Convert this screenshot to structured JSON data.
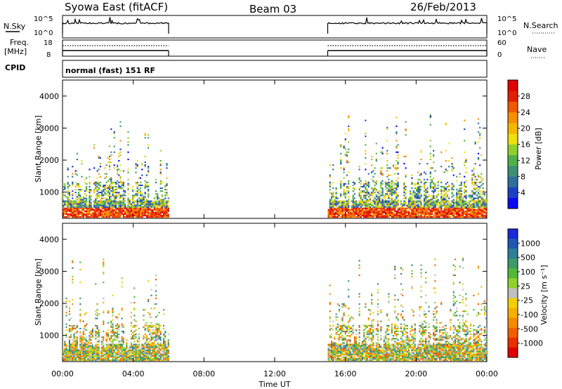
{
  "header": {
    "title": "Syowa East (fitACF)",
    "beam": "Beam 03",
    "date": "26/Feb/2013"
  },
  "panels": {
    "nsky": {
      "label": "N.Sky",
      "ticks": [
        "10^5",
        "10^0"
      ],
      "right_label": "N.Search",
      "right_ticks": [
        "10^5",
        "10^0"
      ]
    },
    "freq": {
      "label_line1": "Freq.",
      "label_line2": "[MHz]",
      "ticks": [
        "18",
        "8"
      ],
      "right_label": "Nave",
      "right_ticks": [
        "60",
        "0"
      ]
    },
    "cpid": {
      "label": "CPID",
      "text": "normal (fast) 151 RF"
    }
  },
  "chart_data": [
    {
      "type": "heatmap",
      "name": "power",
      "ylabel": "Slant Range [km]",
      "ylim": [
        180,
        4500
      ],
      "yticks": [
        "1000",
        "2000",
        "3000",
        "4000"
      ],
      "xlim": [
        "00:00",
        "24:00"
      ],
      "data_coverage_ut": [
        [
          "00:00",
          "06:00"
        ],
        [
          "15:00",
          "24:00"
        ]
      ],
      "colorbar": {
        "label": "Power [dB]",
        "ticks": [
          "4",
          "8",
          "12",
          "16",
          "20",
          "24",
          "28"
        ],
        "colors": [
          "#0a0af0",
          "#1c3fc4",
          "#2f6e9b",
          "#3c8f74",
          "#4fb04a",
          "#8fd030",
          "#f0e010",
          "#f5b800",
          "#f59000",
          "#f05a00",
          "#e02000",
          "#e00000"
        ]
      }
    },
    {
      "type": "heatmap",
      "name": "velocity",
      "ylabel": "Slant Range [km]",
      "ylim": [
        180,
        4500
      ],
      "yticks": [
        "1000",
        "2000",
        "3000",
        "4000"
      ],
      "xlim": [
        "00:00",
        "24:00"
      ],
      "xlabel": "Time UT",
      "xticks": [
        "00:00",
        "04:00",
        "08:00",
        "12:00",
        "16:00",
        "20:00",
        "00:00"
      ],
      "data_coverage_ut": [
        [
          "00:00",
          "06:00"
        ],
        [
          "15:00",
          "24:00"
        ]
      ],
      "colorbar": {
        "label": "Velocity [m s⁻¹]",
        "ticks": [
          "1000",
          "500",
          "100",
          "25",
          "-25",
          "-100",
          "-500",
          "-1000"
        ],
        "colors": [
          "#1a2ad8",
          "#2257b0",
          "#2f7d96",
          "#3c9a6a",
          "#52b83a",
          "#8fd02a",
          "#bfbfbf",
          "#f2d000",
          "#f5b000",
          "#f58a00",
          "#f06000",
          "#e83000",
          "#e00000"
        ]
      }
    }
  ]
}
